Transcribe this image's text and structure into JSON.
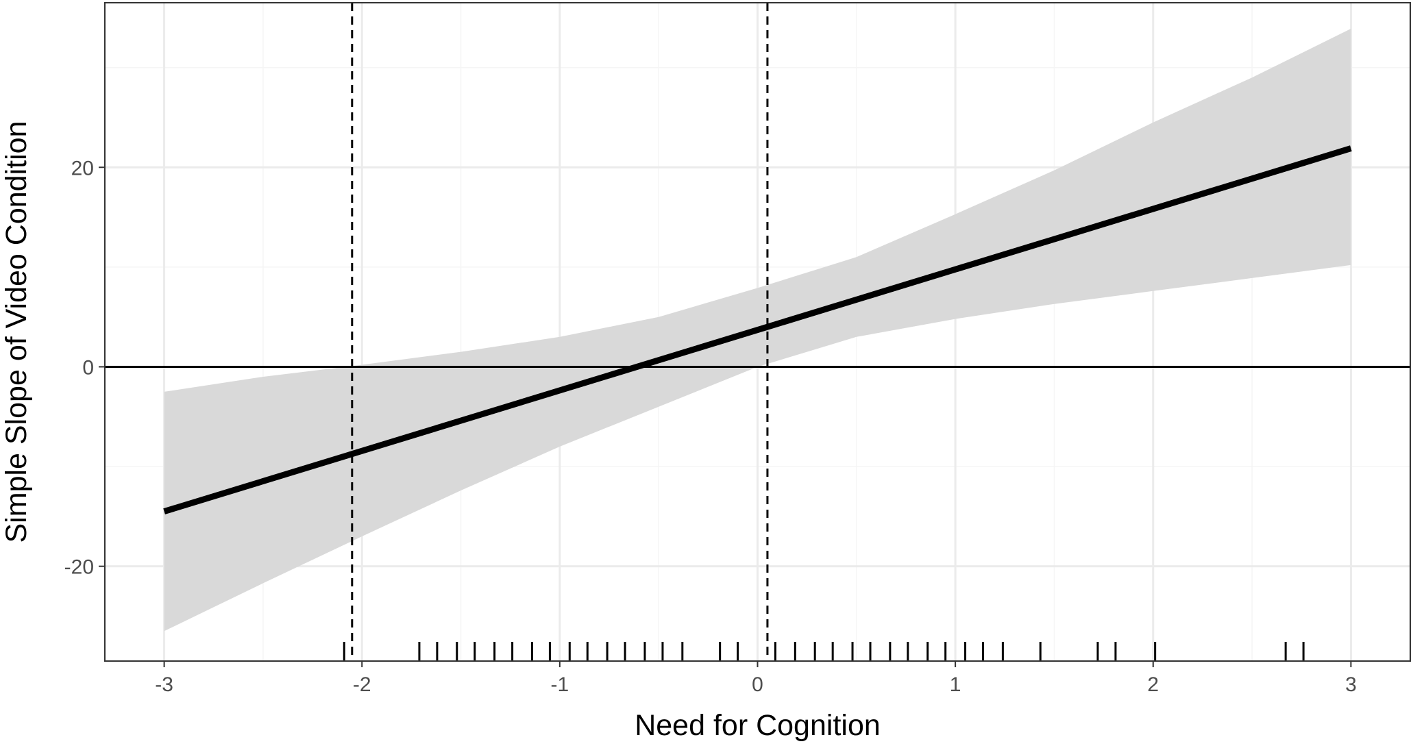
{
  "chart_data": {
    "type": "line",
    "title": "",
    "xlabel": "Need for Cognition",
    "ylabel": "Simple Slope of Video Condition",
    "xlim": [
      -3.3,
      3.3
    ],
    "ylim": [
      -29.5,
      36.5
    ],
    "x_ticks": [
      -3,
      -2,
      -1,
      0,
      1,
      2,
      3
    ],
    "x_tick_labels": [
      "-3",
      "-2",
      "-1",
      "0",
      "1",
      "2",
      "3"
    ],
    "y_ticks": [
      -20,
      0,
      20
    ],
    "y_tick_labels": [
      "-20",
      "0",
      "20"
    ],
    "grid": true,
    "legend": "none",
    "series": [
      {
        "x": [
          -3,
          3
        ],
        "y": [
          -14.5,
          21.9
        ]
      }
    ],
    "confidence_band": {
      "x": [
        -3,
        -2.5,
        -2,
        -1.5,
        -1,
        -0.5,
        0,
        0.5,
        1,
        1.5,
        2,
        2.5,
        3
      ],
      "lower": [
        -26.5,
        -21.7,
        -17.0,
        -12.4,
        -8.0,
        -4.0,
        0.0,
        3.0,
        4.8,
        6.3,
        7.6,
        8.9,
        10.2
      ],
      "upper": [
        -2.5,
        -1.0,
        0.2,
        1.5,
        3.0,
        5.0,
        7.9,
        11.0,
        15.3,
        19.7,
        24.5,
        29.0,
        33.9
      ]
    },
    "reference_lines": {
      "horizontal_y": [
        0
      ],
      "vertical_dashed_x": [
        -2.05,
        0.05
      ]
    },
    "rug_x": [
      -2.09,
      -1.71,
      -1.62,
      -1.52,
      -1.43,
      -1.33,
      -1.24,
      -1.14,
      -1.05,
      -0.95,
      -0.86,
      -0.76,
      -0.67,
      -0.57,
      -0.48,
      -0.38,
      -0.19,
      -0.1,
      0.09,
      0.19,
      0.29,
      0.38,
      0.48,
      0.57,
      0.67,
      0.76,
      0.86,
      0.95,
      1.05,
      1.14,
      1.24,
      1.43,
      1.72,
      1.81,
      2.01,
      2.67,
      2.76
    ],
    "colors": {
      "line": "#000000",
      "band": "#d9d9d9",
      "grid_major": "#ebebeb",
      "grid_minor": "#f5f5f5",
      "panel_border": "#333333"
    }
  }
}
